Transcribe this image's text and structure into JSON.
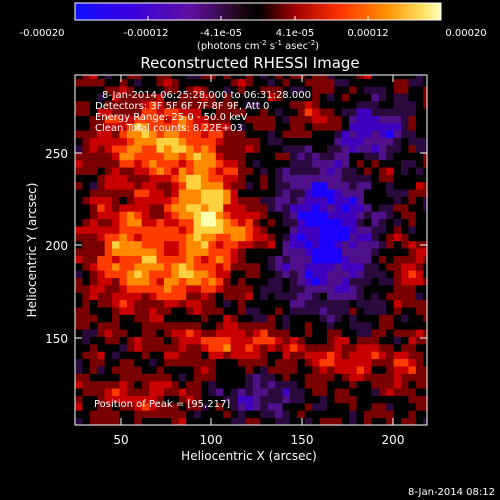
{
  "chart_data": {
    "type": "heatmap",
    "title": "Reconstructed RHESSI Image",
    "xlabel": "Heliocentric X (arcsec)",
    "ylabel": "Heliocentric Y (arcsec)",
    "xlim": [
      25,
      215
    ],
    "ylim": [
      100,
      290
    ],
    "xticks": [
      50,
      100,
      150,
      200
    ],
    "yticks": [
      150,
      200,
      250
    ],
    "colorbar": {
      "range": [
        -0.0002,
        0.0002
      ],
      "tick_labels": [
        "-0.00020",
        "-0.00012",
        "-4.1e-05",
        "4.1e-05",
        "0.00012",
        "0.00020"
      ],
      "unit_label_parts": [
        "(photons cm",
        "-2",
        " s",
        "-1",
        " asec",
        "-2",
        ")"
      ]
    },
    "annotations": {
      "time_range": "8-Jan-2014 06:25:28.000 to 06:31:28.000",
      "detectors": "Detectors: 3F 5F 6F 7F 8F 9F, Att 0",
      "energy": "Energy Range: 25.0 - 50.0 keV",
      "clean": "Clean    Total counts: 8.22E+03",
      "peak": "Position of Peak = [95,217]"
    },
    "peak": {
      "x": 95,
      "y": 217
    },
    "footer_timestamp": "8-Jan-2014 08:12",
    "colors": {
      "ramp": [
        "#1a00ff",
        "#4000c0",
        "#50108a",
        "#2a0a3e",
        "#000000",
        "#7a0000",
        "#c80000",
        "#ff3c00",
        "#ff8a00",
        "#ffd040",
        "#ffffb0"
      ]
    }
  }
}
